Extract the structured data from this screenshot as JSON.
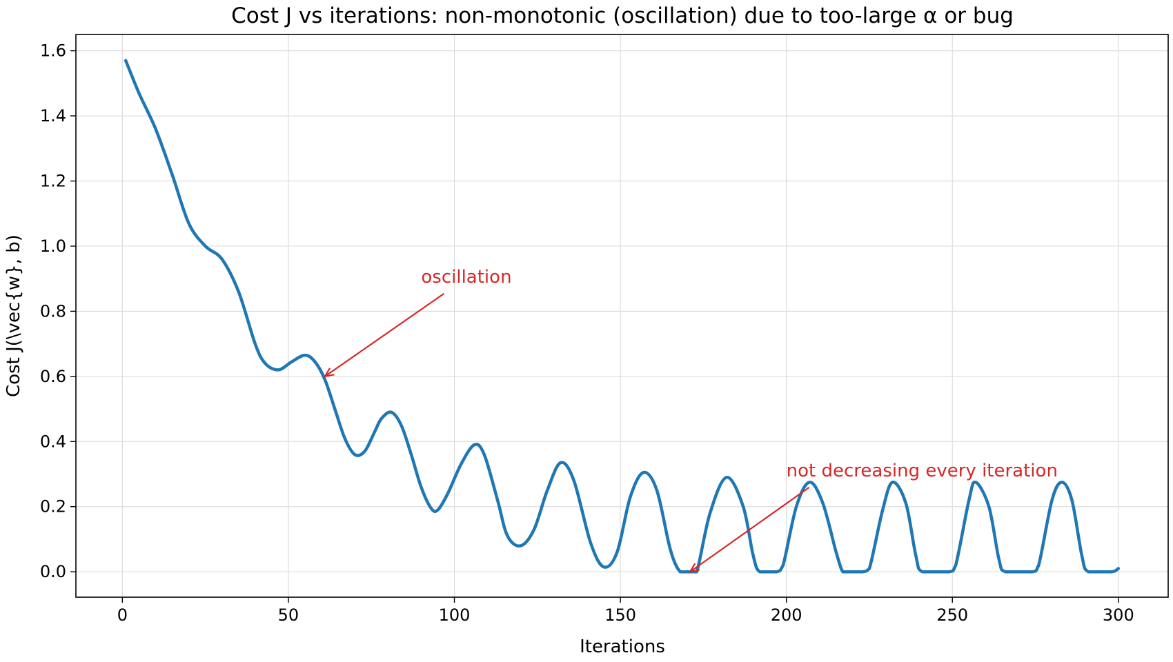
{
  "chart_data": {
    "type": "line",
    "title": "Cost J vs iterations: non-monotonic (oscillation) due to too-large α or bug",
    "xlabel": "Iterations",
    "ylabel": "Cost J(\\vec{w}, b)",
    "xlim": [
      -14,
      315
    ],
    "ylim": [
      -0.078,
      1.65
    ],
    "x_ticks": [
      0,
      50,
      100,
      150,
      200,
      250,
      300
    ],
    "x_tick_labels": [
      "0",
      "50",
      "100",
      "150",
      "200",
      "250",
      "300"
    ],
    "y_ticks": [
      0.0,
      0.2,
      0.4,
      0.6,
      0.8,
      1.0,
      1.2,
      1.4,
      1.6
    ],
    "y_tick_labels": [
      "0.0",
      "0.2",
      "0.4",
      "0.6",
      "0.8",
      "1.0",
      "1.2",
      "1.4",
      "1.6"
    ],
    "grid": true,
    "line_color": "#1f77b4",
    "annotation_color": "#d62728",
    "series": [
      {
        "name": "",
        "x": [
          1,
          5,
          10,
          15,
          20,
          25,
          30,
          35,
          40,
          43,
          47,
          51,
          55,
          58,
          61,
          64,
          67,
          70,
          73,
          76,
          78,
          81,
          84,
          87,
          90,
          93,
          95,
          98,
          102,
          106,
          109,
          113,
          116,
          120,
          124,
          128,
          132,
          136,
          141,
          145,
          149,
          153,
          157,
          161,
          165,
          168,
          171,
          173,
          177,
          182,
          187,
          190,
          192,
          197,
          199,
          203,
          207,
          211,
          215,
          217,
          219,
          223,
          225,
          229,
          232,
          236,
          239,
          241,
          249,
          251,
          255,
          257,
          261,
          264,
          266,
          274,
          276,
          280,
          283,
          286,
          289,
          291,
          298,
          300
        ],
        "y": [
          1.57,
          1.47,
          1.36,
          1.22,
          1.07,
          1.0,
          0.96,
          0.86,
          0.7,
          0.64,
          0.62,
          0.645,
          0.665,
          0.645,
          0.59,
          0.5,
          0.41,
          0.36,
          0.37,
          0.43,
          0.47,
          0.49,
          0.45,
          0.36,
          0.26,
          0.195,
          0.19,
          0.24,
          0.33,
          0.39,
          0.36,
          0.22,
          0.11,
          0.08,
          0.13,
          0.25,
          0.335,
          0.28,
          0.09,
          0.015,
          0.06,
          0.23,
          0.305,
          0.25,
          0.07,
          0.0,
          0.0,
          0.0,
          0.18,
          0.29,
          0.2,
          0.05,
          0.0,
          0.0,
          0.02,
          0.2,
          0.275,
          0.21,
          0.06,
          0.0,
          0.0,
          0.0,
          0.01,
          0.19,
          0.275,
          0.21,
          0.05,
          0.0,
          0.0,
          0.02,
          0.22,
          0.275,
          0.2,
          0.04,
          0.0,
          0.0,
          0.02,
          0.22,
          0.275,
          0.22,
          0.05,
          0.0,
          0.0,
          0.01
        ]
      }
    ],
    "annotations": [
      {
        "text": "oscillation",
        "text_x": 90,
        "text_y": 0.85,
        "target_x": 61,
        "target_y": 0.6
      },
      {
        "text": "not decreasing every iteration",
        "text_x": 200,
        "text_y": 0.255,
        "target_x": 171,
        "target_y": 0.0
      }
    ]
  }
}
